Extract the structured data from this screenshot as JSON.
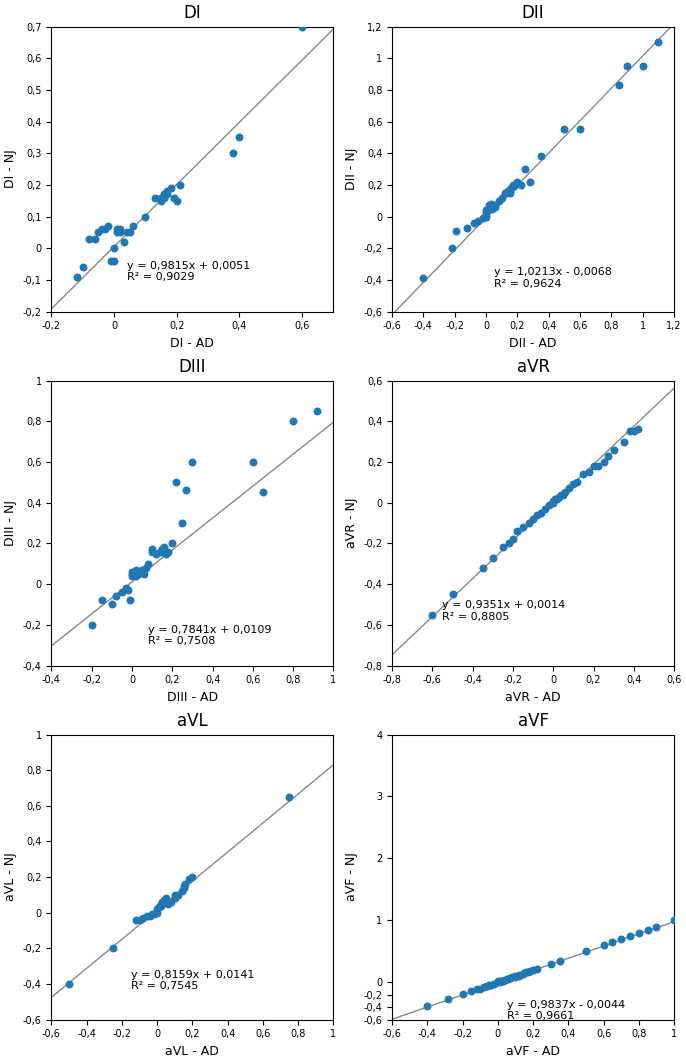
{
  "chart_data": [
    {
      "type": "scatter",
      "title": "DI",
      "xlabel": "DI - AD",
      "ylabel": "DI - NJ",
      "marker": "o",
      "xlim": [
        -0.2,
        0.7
      ],
      "ylim": [
        -0.2,
        0.7
      ],
      "xticks": [
        {
          "value": -0.2,
          "label": "-0,2"
        },
        0,
        {
          "value": 0.2,
          "label": "0,2"
        },
        {
          "value": 0.4,
          "label": "0,4"
        },
        {
          "value": 0.6,
          "label": "0,6"
        }
      ],
      "yticks": [
        {
          "value": -0.2,
          "label": "-0,2"
        },
        {
          "value": -0.1,
          "label": "-0,1"
        },
        0,
        {
          "value": 0.1,
          "label": "0,1"
        },
        {
          "value": 0.2,
          "label": "0,2"
        },
        {
          "value": 0.3,
          "label": "0,3"
        },
        {
          "value": 0.4,
          "label": "0,4"
        },
        {
          "value": 0.5,
          "label": "0,5"
        },
        {
          "value": 0.6,
          "label": "0,6"
        },
        {
          "value": 0.7,
          "label": "0,7"
        }
      ],
      "trendline": {
        "slope": 0.9815,
        "intercept": 0.0051,
        "color": "#888888"
      },
      "annotations": [
        {
          "text": "y = 0,9815x + 0,0051\nR² = 0,9029",
          "x": 0.04,
          "y": -0.04
        }
      ],
      "x": [
        -0.12,
        -0.1,
        -0.08,
        -0.06,
        -0.05,
        -0.04,
        -0.03,
        -0.02,
        -0.01,
        0.0,
        0.0,
        0.01,
        0.01,
        0.02,
        0.02,
        0.03,
        0.04,
        0.05,
        0.06,
        0.1,
        0.13,
        0.15,
        0.15,
        0.16,
        0.16,
        0.17,
        0.17,
        0.18,
        0.19,
        0.2,
        0.21,
        0.38,
        0.4,
        0.6
      ],
      "values": [
        -0.09,
        -0.06,
        0.03,
        0.03,
        0.05,
        0.06,
        0.06,
        0.07,
        -0.04,
        -0.04,
        0.0,
        0.05,
        0.06,
        0.05,
        0.06,
        0.02,
        0.05,
        0.05,
        0.07,
        0.1,
        0.16,
        0.15,
        0.16,
        0.16,
        0.17,
        0.17,
        0.18,
        0.19,
        0.16,
        0.15,
        0.2,
        0.3,
        0.35,
        0.7
      ]
    },
    {
      "type": "scatter",
      "title": "DII",
      "xlabel": "DII - AD",
      "ylabel": "DII - NJ",
      "marker": "o",
      "xlim": [
        -0.6,
        1.2
      ],
      "ylim": [
        -0.6,
        1.2
      ],
      "xticks": [
        {
          "value": -0.6,
          "label": "-0,6"
        },
        {
          "value": -0.4,
          "label": "-0,4"
        },
        {
          "value": -0.2,
          "label": "-0,2"
        },
        0,
        {
          "value": 0.2,
          "label": "0,2"
        },
        {
          "value": 0.4,
          "label": "0,4"
        },
        {
          "value": 0.6,
          "label": "0,6"
        },
        {
          "value": 0.8,
          "label": "0,8"
        },
        1,
        {
          "value": 1.2,
          "label": "1,2"
        }
      ],
      "yticks": [
        {
          "value": -0.6,
          "label": "-0,6"
        },
        {
          "value": -0.4,
          "label": "-0,4"
        },
        {
          "value": -0.2,
          "label": "-0,2"
        },
        0,
        {
          "value": 0.2,
          "label": "0,2"
        },
        {
          "value": 0.4,
          "label": "0,4"
        },
        {
          "value": 0.6,
          "label": "0,6"
        },
        {
          "value": 0.8,
          "label": "0,8"
        },
        1,
        {
          "value": 1.2,
          "label": "1,2"
        }
      ],
      "trendline": {
        "slope": 1.0213,
        "intercept": -0.0068,
        "color": "#888888"
      },
      "annotations": [
        {
          "text": "y = 1,0213x - 0,0068\nR² = 0,9624",
          "x": 0.05,
          "y": -0.32
        }
      ],
      "x": [
        -0.4,
        -0.22,
        -0.19,
        -0.12,
        -0.08,
        -0.05,
        -0.02,
        0.0,
        0.0,
        0.0,
        0.01,
        0.02,
        0.02,
        0.03,
        0.04,
        0.05,
        0.06,
        0.06,
        0.08,
        0.1,
        0.12,
        0.13,
        0.14,
        0.14,
        0.15,
        0.15,
        0.16,
        0.17,
        0.18,
        0.2,
        0.22,
        0.25,
        0.28,
        0.35,
        0.5,
        0.6,
        0.85,
        0.9,
        1.0,
        1.1
      ],
      "values": [
        -0.39,
        -0.2,
        -0.09,
        -0.07,
        -0.04,
        -0.03,
        -0.01,
        0.0,
        0.02,
        0.04,
        0.05,
        0.06,
        0.07,
        0.08,
        0.05,
        0.06,
        0.06,
        0.07,
        0.1,
        0.12,
        0.15,
        0.15,
        0.16,
        0.16,
        0.15,
        0.17,
        0.18,
        0.2,
        0.19,
        0.22,
        0.2,
        0.3,
        0.22,
        0.38,
        0.55,
        0.55,
        0.83,
        0.95,
        0.95,
        1.1
      ]
    },
    {
      "type": "scatter",
      "title": "DIII",
      "xlabel": "DIII - AD",
      "ylabel": "DIII - NJ",
      "marker": "o",
      "xlim": [
        -0.4,
        1.0
      ],
      "ylim": [
        -0.4,
        1.0
      ],
      "xticks": [
        {
          "value": -0.4,
          "label": "-0,4"
        },
        {
          "value": -0.2,
          "label": "-0,2"
        },
        0,
        {
          "value": 0.2,
          "label": "0,2"
        },
        {
          "value": 0.4,
          "label": "0,4"
        },
        {
          "value": 0.6,
          "label": "0,6"
        },
        {
          "value": 0.8,
          "label": "0,8"
        },
        1
      ],
      "yticks": [
        {
          "value": -0.4,
          "label": "-0,4"
        },
        {
          "value": -0.2,
          "label": "-0,2"
        },
        0,
        {
          "value": 0.2,
          "label": "0,2"
        },
        {
          "value": 0.4,
          "label": "0,4"
        },
        {
          "value": 0.6,
          "label": "0,6"
        },
        {
          "value": 0.8,
          "label": "0,8"
        },
        1
      ],
      "trendline": {
        "slope": 0.7841,
        "intercept": 0.0109,
        "color": "#888888"
      },
      "annotations": [
        {
          "text": "y = 0,7841x + 0,0109\nR² = 0,7508",
          "x": 0.08,
          "y": -0.2
        }
      ],
      "x": [
        -0.2,
        -0.15,
        -0.1,
        -0.08,
        -0.05,
        -0.03,
        -0.02,
        -0.01,
        0.0,
        0.0,
        0.0,
        0.01,
        0.01,
        0.02,
        0.02,
        0.03,
        0.04,
        0.05,
        0.06,
        0.07,
        0.08,
        0.1,
        0.1,
        0.12,
        0.14,
        0.15,
        0.15,
        0.16,
        0.17,
        0.18,
        0.2,
        0.22,
        0.25,
        0.27,
        0.3,
        0.6,
        0.65,
        0.8,
        0.92
      ],
      "values": [
        -0.2,
        -0.08,
        -0.1,
        -0.06,
        -0.04,
        -0.02,
        -0.03,
        -0.08,
        0.04,
        0.05,
        0.06,
        0.05,
        0.06,
        0.07,
        0.04,
        0.05,
        0.06,
        0.07,
        0.05,
        0.08,
        0.1,
        0.16,
        0.17,
        0.15,
        0.16,
        0.17,
        0.16,
        0.18,
        0.15,
        0.16,
        0.2,
        0.5,
        0.3,
        0.46,
        0.6,
        0.6,
        0.45,
        0.8,
        0.85
      ]
    },
    {
      "type": "scatter",
      "title": "aVR",
      "xlabel": "aVR - AD",
      "ylabel": "aVR - NJ",
      "marker": "o",
      "xlim": [
        -0.8,
        0.6
      ],
      "ylim": [
        -0.8,
        0.6
      ],
      "xticks": [
        {
          "value": -0.8,
          "label": "-0,8"
        },
        {
          "value": -0.6,
          "label": "-0,6"
        },
        {
          "value": -0.4,
          "label": "-0,4"
        },
        {
          "value": -0.2,
          "label": "-0,2"
        },
        0,
        {
          "value": 0.2,
          "label": "0,2"
        },
        {
          "value": 0.4,
          "label": "0,4"
        },
        {
          "value": 0.6,
          "label": "0,6"
        }
      ],
      "yticks": [
        {
          "value": -0.8,
          "label": "-0,8"
        },
        {
          "value": -0.6,
          "label": "-0,6"
        },
        {
          "value": -0.4,
          "label": "-0,4"
        },
        {
          "value": -0.2,
          "label": "-0,2"
        },
        0,
        {
          "value": 0.2,
          "label": "0,2"
        },
        {
          "value": 0.4,
          "label": "0,4"
        },
        {
          "value": 0.6,
          "label": "0,6"
        }
      ],
      "trendline": {
        "slope": 0.9351,
        "intercept": 0.0014,
        "color": "#888888"
      },
      "annotations": [
        {
          "text": "y = 0,9351x + 0,0014\nR² = 0,8805",
          "x": -0.55,
          "y": -0.48
        }
      ],
      "x": [
        -0.6,
        -0.5,
        -0.35,
        -0.3,
        -0.25,
        -0.22,
        -0.2,
        -0.18,
        -0.15,
        -0.12,
        -0.1,
        -0.08,
        -0.06,
        -0.04,
        -0.02,
        0.0,
        0.0,
        0.01,
        0.02,
        0.03,
        0.04,
        0.05,
        0.06,
        0.08,
        0.1,
        0.12,
        0.15,
        0.18,
        0.2,
        0.22,
        0.25,
        0.27,
        0.3,
        0.35,
        0.38,
        0.4,
        0.42
      ],
      "values": [
        -0.55,
        -0.45,
        -0.32,
        -0.27,
        -0.22,
        -0.2,
        -0.18,
        -0.14,
        -0.12,
        -0.1,
        -0.08,
        -0.06,
        -0.05,
        -0.03,
        -0.01,
        0.0,
        0.01,
        0.02,
        0.02,
        0.03,
        0.04,
        0.04,
        0.05,
        0.07,
        0.09,
        0.1,
        0.14,
        0.15,
        0.18,
        0.18,
        0.2,
        0.23,
        0.26,
        0.3,
        0.35,
        0.35,
        0.36
      ]
    },
    {
      "type": "scatter",
      "title": "aVL",
      "xlabel": "aVL - AD",
      "ylabel": "aVL - NJ",
      "marker": "o",
      "xlim": [
        -0.6,
        1.0
      ],
      "ylim": [
        -0.6,
        1.0
      ],
      "xticks": [
        {
          "value": -0.6,
          "label": "-0,6"
        },
        {
          "value": -0.4,
          "label": "-0,4"
        },
        {
          "value": -0.2,
          "label": "-0,2"
        },
        0,
        {
          "value": 0.2,
          "label": "0,2"
        },
        {
          "value": 0.4,
          "label": "0,4"
        },
        {
          "value": 0.6,
          "label": "0,6"
        },
        {
          "value": 0.8,
          "label": "0,8"
        },
        1
      ],
      "yticks": [
        {
          "value": -0.6,
          "label": "-0,6"
        },
        {
          "value": -0.4,
          "label": "-0,4"
        },
        {
          "value": -0.2,
          "label": "-0,2"
        },
        0,
        {
          "value": 0.2,
          "label": "0,2"
        },
        {
          "value": 0.4,
          "label": "0,4"
        },
        {
          "value": 0.6,
          "label": "0,6"
        },
        {
          "value": 0.8,
          "label": "0,8"
        },
        1
      ],
      "trendline": {
        "slope": 0.8159,
        "intercept": 0.0141,
        "color": "#888888"
      },
      "annotations": [
        {
          "text": "y = 0,8159x + 0,0141\nR² = 0,7545",
          "x": -0.15,
          "y": -0.32
        }
      ],
      "x": [
        -0.5,
        -0.25,
        -0.12,
        -0.1,
        -0.08,
        -0.06,
        -0.04,
        -0.03,
        -0.02,
        0.0,
        0.0,
        0.01,
        0.02,
        0.02,
        0.03,
        0.04,
        0.05,
        0.06,
        0.08,
        0.1,
        0.1,
        0.12,
        0.14,
        0.15,
        0.15,
        0.16,
        0.18,
        0.2,
        0.75
      ],
      "values": [
        -0.4,
        -0.2,
        -0.04,
        -0.04,
        -0.03,
        -0.02,
        -0.02,
        -0.01,
        -0.01,
        0.0,
        0.02,
        0.03,
        0.04,
        0.05,
        0.06,
        0.07,
        0.08,
        0.05,
        0.06,
        0.08,
        0.1,
        0.1,
        0.12,
        0.14,
        0.15,
        0.16,
        0.19,
        0.2,
        0.65
      ]
    },
    {
      "type": "scatter",
      "title": "aVF",
      "xlabel": "aVF - AD",
      "ylabel": "aVF - NJ",
      "marker": "o",
      "xlim": [
        -0.6,
        1.0
      ],
      "ylim": [
        -0.6,
        4.0
      ],
      "xticks": [
        {
          "value": -0.6,
          "label": "-0,6"
        },
        {
          "value": -0.4,
          "label": "-0,4"
        },
        {
          "value": -0.2,
          "label": "-0,2"
        },
        0,
        {
          "value": 0.2,
          "label": "0,2"
        },
        {
          "value": 0.4,
          "label": "0,4"
        },
        {
          "value": 0.6,
          "label": "0,6"
        },
        {
          "value": 0.8,
          "label": "0,8"
        },
        1
      ],
      "yticks": [
        {
          "value": -0.6,
          "label": "-0,6"
        },
        {
          "value": -0.4,
          "label": "-0,4"
        },
        {
          "value": -0.2,
          "label": "-0,2"
        },
        0,
        1,
        2,
        3,
        4
      ],
      "trendline": {
        "slope": 0.9837,
        "intercept": -0.0044,
        "color": "#888888"
      },
      "annotations": [
        {
          "text": "y = 0,9837x - 0,0044\nR² = 0,9661",
          "x": 0.05,
          "y": -0.28
        }
      ],
      "x": [
        -0.4,
        -0.28,
        -0.2,
        -0.15,
        -0.12,
        -0.1,
        -0.08,
        -0.06,
        -0.05,
        -0.04,
        -0.02,
        0.0,
        0.0,
        0.01,
        0.02,
        0.02,
        0.03,
        0.04,
        0.05,
        0.06,
        0.07,
        0.08,
        0.1,
        0.1,
        0.12,
        0.12,
        0.14,
        0.15,
        0.16,
        0.17,
        0.18,
        0.2,
        0.22,
        0.3,
        0.35,
        0.5,
        0.6,
        0.65,
        0.7,
        0.75,
        0.8,
        0.85,
        0.9,
        1.0
      ],
      "values": [
        -0.38,
        -0.27,
        -0.18,
        -0.14,
        -0.11,
        -0.1,
        -0.08,
        -0.06,
        -0.05,
        -0.04,
        -0.02,
        0.0,
        0.02,
        0.01,
        0.02,
        0.03,
        0.03,
        0.04,
        0.05,
        0.06,
        0.07,
        0.08,
        0.09,
        0.1,
        0.11,
        0.12,
        0.14,
        0.15,
        0.16,
        0.17,
        0.18,
        0.2,
        0.22,
        0.3,
        0.35,
        0.5,
        0.6,
        0.65,
        0.7,
        0.75,
        0.8,
        0.85,
        0.9,
        1.0
      ]
    }
  ]
}
